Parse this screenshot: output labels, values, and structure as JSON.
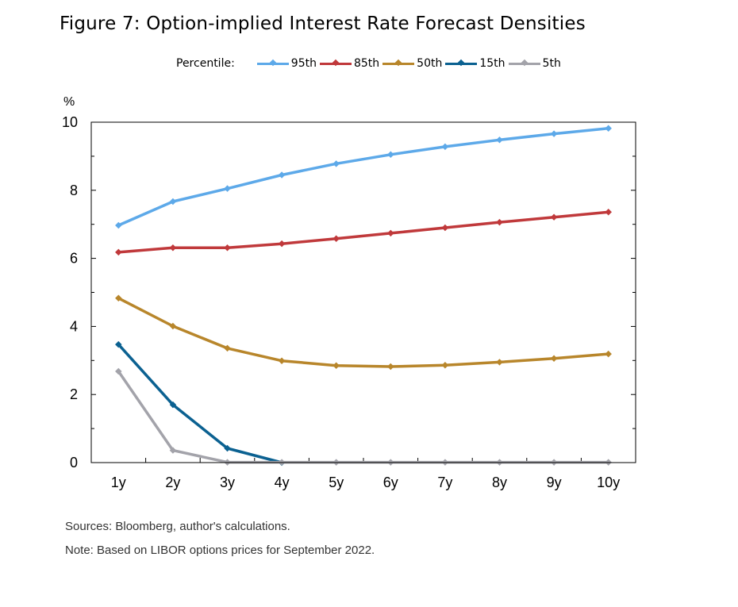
{
  "title": "Figure 7: Option-implied Interest Rate Forecast Densities",
  "legend_title": "Percentile:",
  "sources": "Sources: Bloomberg, author's calculations.",
  "note": "Note: Based on LIBOR options prices for September 2022.",
  "chart_data": {
    "type": "line",
    "title": "Figure 7: Option-implied Interest Rate Forecast Densities",
    "xlabel": "",
    "ylabel": "%",
    "ylim": [
      0,
      10
    ],
    "yticks": [
      "0",
      "2",
      "4",
      "6",
      "8",
      "10"
    ],
    "categories": [
      "1y",
      "2y",
      "3y",
      "4y",
      "5y",
      "6y",
      "7y",
      "8y",
      "9y",
      "10y"
    ],
    "grid": false,
    "legend_position": "top",
    "series": [
      {
        "name": "95th",
        "color": "#5DA9E9",
        "values": [
          6.97,
          7.67,
          8.05,
          8.45,
          8.78,
          9.05,
          9.28,
          9.48,
          9.66,
          9.82
        ]
      },
      {
        "name": "85th",
        "color": "#C0393B",
        "values": [
          6.18,
          6.31,
          6.31,
          6.43,
          6.58,
          6.74,
          6.9,
          7.06,
          7.21,
          7.36
        ]
      },
      {
        "name": "50th",
        "color": "#B8862B",
        "values": [
          4.83,
          4.01,
          3.36,
          2.99,
          2.85,
          2.82,
          2.86,
          2.95,
          3.06,
          3.19
        ]
      },
      {
        "name": "15th",
        "color": "#0B6191",
        "values": [
          3.47,
          1.7,
          0.42,
          0.0,
          null,
          null,
          null,
          null,
          null,
          null
        ]
      },
      {
        "name": "5th",
        "color": "#A3A3AA",
        "values": [
          2.68,
          0.36,
          0.01,
          0.01,
          0.01,
          0.01,
          0.01,
          0.01,
          0.01,
          0.01
        ]
      }
    ]
  }
}
